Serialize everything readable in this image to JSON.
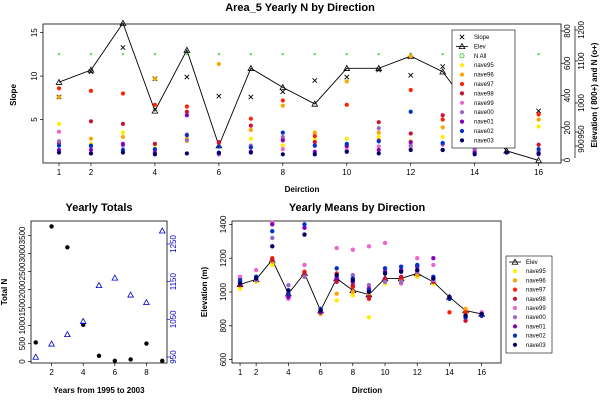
{
  "chart_data": [
    {
      "id": "top",
      "type": "scatter",
      "title": "Area_5 Yearly N by Direction",
      "xlabel": "Deirction",
      "ylabel": "Slope",
      "ylabel_right": "Elevation ( 800+) and N (o+)",
      "xlim": [
        0.5,
        16.7
      ],
      "ylim": [
        0,
        16
      ],
      "x_ticks": [
        1,
        2,
        4,
        6,
        8,
        10,
        12,
        14,
        16
      ],
      "y_ticks": [
        5,
        10,
        15
      ],
      "right_axis_1": {
        "ticks": [
          0,
          200,
          400,
          600,
          800
        ],
        "range": [
          0,
          800
        ]
      },
      "right_axis_2": {
        "ticks": [
          900,
          950,
          1000,
          1100,
          1200
        ]
      },
      "legend_position": "top-right",
      "legend": [
        "Slope",
        "Elev",
        "N All",
        "nave95",
        "nave96",
        "nave97",
        "nave98",
        "nave99",
        "nave00",
        "nave01",
        "nave02",
        "nave03"
      ],
      "x": [
        1,
        2,
        3,
        4,
        5,
        6,
        7,
        8,
        9,
        10,
        11,
        12,
        13,
        14,
        15,
        16
      ],
      "series": [
        {
          "name": "Slope",
          "marker": "x",
          "color": "#000000",
          "values": [
            7.6,
            10.5,
            13.3,
            9.7,
            9.9,
            7.7,
            7.6,
            8.2,
            9.5,
            9.9,
            10.7,
            10.1,
            11.1,
            7.7,
            6.7,
            6.0
          ]
        },
        {
          "name": "Elev",
          "marker": "triangle-line",
          "color": "#000000",
          "values": [
            9.3,
            10.7,
            16.1,
            6.0,
            13.0,
            2.0,
            10.9,
            8.7,
            6.8,
            10.9,
            10.9,
            12.3,
            10.5,
            5.6,
            1.4,
            0.3
          ]
        },
        {
          "name": "N All",
          "marker": "open-circle",
          "color": "#22cc22",
          "values": [
            12.5,
            12.5,
            12.5,
            12.5,
            12.5,
            12.5,
            12.5,
            12.5,
            12.5,
            12.5,
            12.5,
            12.5,
            12.5,
            12.5,
            12.5,
            12.5
          ]
        },
        {
          "name": "nave95",
          "marker": "dot",
          "color": "#ffee00",
          "values": [
            4.5,
            2.2,
            3.5,
            2.1,
            2.5,
            2.0,
            2.8,
            2.0,
            2.8,
            2.8,
            3.0,
            2.5,
            3.0,
            2.5,
            2.2,
            4.2
          ]
        },
        {
          "name": "nave96",
          "marker": "dot",
          "color": "#ffa500",
          "values": [
            7.6,
            2.8,
            3.0,
            9.7,
            2.8,
            11.4,
            3.8,
            6.6,
            3.5,
            9.4,
            3.5,
            12.3,
            4.1,
            12.1,
            8.4,
            5.0
          ]
        },
        {
          "name": "nave97",
          "marker": "dot",
          "color": "#ff2200",
          "values": [
            8.6,
            8.3,
            8.0,
            6.7,
            6.5,
            2.3,
            5.1,
            7.2,
            3.1,
            6.7,
            2.6,
            8.4,
            5.0,
            1.3,
            4.5,
            5.6
          ]
        },
        {
          "name": "nave98",
          "marker": "dot",
          "color": "#cc1133",
          "values": [
            2.3,
            4.8,
            4.5,
            2.2,
            5.9,
            2.4,
            4.3,
            2.7,
            2.4,
            1.9,
            4.7,
            3.4,
            5.5,
            3.0,
            2.2,
            2.1
          ]
        },
        {
          "name": "nave99",
          "marker": "dot",
          "color": "#ee66cc",
          "values": [
            3.6,
            1.1,
            1.5,
            1.5,
            3.3,
            1.0,
            1.8,
            1.6,
            2.0,
            1.5,
            1.9,
            1.7,
            2.1,
            1.6,
            2.0,
            1.3
          ]
        },
        {
          "name": "nave00",
          "marker": "dot",
          "color": "#9966cc",
          "values": [
            2.5,
            1.9,
            2.0,
            1.0,
            2.6,
            1.0,
            2.0,
            3.0,
            1.0,
            1.3,
            4.0,
            2.0,
            2.2,
            1.5,
            1.2,
            1.3
          ]
        },
        {
          "name": "nave01",
          "marker": "dot",
          "color": "#8800bb",
          "values": [
            1.5,
            1.5,
            2.2,
            1.2,
            5.5,
            1.1,
            1.3,
            2.6,
            1.3,
            2.0,
            1.5,
            2.4,
            1.5,
            1.2,
            3.5,
            1.0
          ]
        },
        {
          "name": "nave02",
          "marker": "dot",
          "color": "#0033cc",
          "values": [
            2.0,
            2.0,
            1.5,
            1.6,
            3.2,
            1.9,
            1.8,
            3.5,
            2.0,
            2.2,
            2.5,
            5.9,
            2.3,
            4.0,
            2.0,
            1.6
          ]
        },
        {
          "name": "nave03",
          "marker": "dot",
          "color": "#000066",
          "values": [
            1.2,
            1.1,
            1.2,
            1.0,
            1.1,
            1.2,
            1.2,
            1.0,
            1.0,
            1.3,
            1.1,
            1.5,
            1.5,
            1.0,
            1.2,
            1.1
          ]
        }
      ]
    },
    {
      "id": "bl",
      "type": "scatter",
      "title": "Yearly Totals",
      "xlabel": "Years from 1995 to 2003",
      "ylabel": "Total N",
      "xlim": [
        0.7,
        9.3
      ],
      "ylim": [
        -40,
        3900
      ],
      "x_ticks": [
        2,
        4,
        6,
        8
      ],
      "y_ticks": [
        0,
        500,
        1000,
        1500,
        2000,
        2500,
        3000,
        3500
      ],
      "right_axis": {
        "ticks": [
          950,
          1050,
          1150,
          1250
        ],
        "range": [
          950,
          1295
        ],
        "color": "#0000cc"
      },
      "x": [
        1,
        2,
        3,
        4,
        5,
        6,
        7,
        8,
        9
      ],
      "series": [
        {
          "name": "Total N",
          "marker": "dot",
          "color": "#000000",
          "values": [
            530,
            3750,
            3170,
            1020,
            160,
            20,
            60,
            500,
            20
          ]
        },
        {
          "name": "Elevation",
          "marker": "open-triangle",
          "color": "#0000cc",
          "axis": "right",
          "values": [
            950,
            985,
            1010,
            1045,
            1140,
            1160,
            1115,
            1095,
            1285
          ]
        }
      ]
    },
    {
      "id": "br",
      "type": "scatter",
      "title": "Yearly Means by Direction",
      "xlabel": "Dirction",
      "ylabel": "Elevation (m)",
      "xlim": [
        0.5,
        17.2
      ],
      "ylim": [
        580,
        1420
      ],
      "x_ticks": [
        1,
        2,
        4,
        6,
        8,
        10,
        12,
        14,
        16
      ],
      "y_ticks": [
        600,
        800,
        1000,
        1200,
        1400
      ],
      "legend_position": "right",
      "legend": [
        "Elev",
        "nave95",
        "nave96",
        "nave97",
        "nave98",
        "nave99",
        "nave00",
        "nave01",
        "nave02",
        "nave03"
      ],
      "x": [
        1,
        2,
        3,
        4,
        5,
        6,
        7,
        8,
        9,
        10,
        11,
        12,
        13,
        14,
        15,
        16
      ],
      "series": [
        {
          "name": "Elev",
          "marker": "triangle-line",
          "color": "#000000",
          "values": [
            1045,
            1075,
            1190,
            990,
            1110,
            890,
            1080,
            1010,
            985,
            1080,
            1080,
            1110,
            1060,
            970,
            890,
            870
          ]
        },
        {
          "name": "nave95",
          "marker": "dot",
          "color": "#ffee00",
          "values": [
            1020,
            1060,
            1160,
            960,
            1090,
            880,
            950,
            980,
            850,
            1050,
            1060,
            1090,
            1050,
            970,
            880,
            860
          ]
        },
        {
          "name": "nave96",
          "marker": "dot",
          "color": "#ffa500",
          "values": [
            1060,
            1070,
            1180,
            1000,
            1100,
            870,
            990,
            1000,
            990,
            1060,
            1070,
            1100,
            1070,
            970,
            900,
            870
          ]
        },
        {
          "name": "nave97",
          "marker": "dot",
          "color": "#ff2200",
          "values": [
            1080,
            1090,
            1200,
            980,
            1120,
            880,
            1110,
            1030,
            960,
            1070,
            1080,
            1130,
            1080,
            880,
            880,
            860
          ]
        },
        {
          "name": "nave98",
          "marker": "dot",
          "color": "#cc1133",
          "values": [
            1040,
            1080,
            1190,
            990,
            1110,
            880,
            1060,
            1040,
            970,
            1080,
            1090,
            1120,
            1060,
            970,
            830,
            870
          ]
        },
        {
          "name": "nave99",
          "marker": "dot",
          "color": "#ee66cc",
          "values": [
            1090,
            1130,
            1410,
            960,
            1160,
            890,
            1260,
            1250,
            1270,
            1290,
            1050,
            1200,
            1160,
            970,
            850,
            880
          ]
        },
        {
          "name": "nave00",
          "marker": "dot",
          "color": "#9966cc",
          "values": [
            1050,
            1070,
            1320,
            1040,
            1090,
            900,
            1090,
            1100,
            1040,
            1060,
            1060,
            1120,
            1070,
            960,
            850,
            860
          ]
        },
        {
          "name": "nave01",
          "marker": "dot",
          "color": "#8800bb",
          "values": [
            1060,
            1090,
            1400,
            970,
            1380,
            880,
            1080,
            1060,
            1020,
            1120,
            1130,
            1150,
            1200,
            970,
            860,
            860
          ]
        },
        {
          "name": "nave02",
          "marker": "dot",
          "color": "#0033cc",
          "values": [
            1070,
            1090,
            1360,
            990,
            1400,
            900,
            1140,
            1080,
            1010,
            1140,
            1150,
            1160,
            1090,
            960,
            850,
            860
          ]
        },
        {
          "name": "nave03",
          "marker": "dot",
          "color": "#000066",
          "values": [
            1050,
            1080,
            1270,
            1010,
            1340,
            890,
            1100,
            1070,
            1000,
            1110,
            1120,
            1130,
            1080,
            970,
            860,
            870
          ]
        }
      ]
    }
  ]
}
